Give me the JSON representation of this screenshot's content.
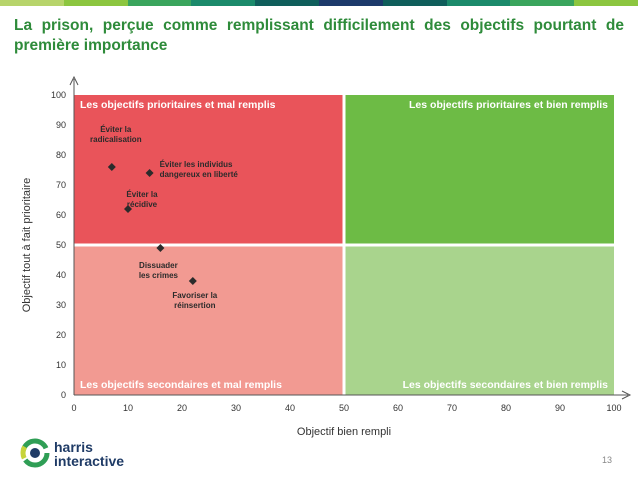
{
  "title": "La prison, perçue comme remplissant difficilement des objectifs pourtant de première importance",
  "page_number": "13",
  "logo": {
    "line1": "harris",
    "line2": "interactive"
  },
  "colors": {
    "title": "#2e8b3a",
    "top_bar": [
      "#b7d46b",
      "#8cc63f",
      "#3aa55d",
      "#1b8a6b",
      "#0f5e5b",
      "#1d3a6b",
      "#0f5e5b",
      "#1b8a6b",
      "#3aa55d",
      "#8cc63f"
    ],
    "q_top_left": "#e9545a",
    "q_bottom_left": "#f29a92",
    "q_top_right": "#6dbb45",
    "q_bottom_right": "#a9d48d"
  },
  "chart_data": {
    "type": "scatter",
    "xlabel": "Objectif bien rempli",
    "ylabel": "Objectif tout à fait prioritaire",
    "xlim": [
      0,
      100
    ],
    "ylim": [
      0,
      100
    ],
    "x_ticks": [
      "0",
      "10",
      "20",
      "30",
      "40",
      "50",
      "60",
      "70",
      "80",
      "90",
      "100"
    ],
    "y_ticks": [
      "0",
      "10",
      "20",
      "30",
      "40",
      "50",
      "60",
      "70",
      "80",
      "90",
      "100"
    ],
    "quadrant_split": {
      "x": 50,
      "y": 50
    },
    "quadrants": {
      "top_left": "Les objectifs prioritaires et mal remplis",
      "top_right": "Les objectifs prioritaires et bien remplis",
      "bottom_left": "Les objectifs secondaires et mal remplis",
      "bottom_right": "Les objectifs secondaires et bien remplis"
    },
    "points": [
      {
        "label": [
          "Éviter la",
          "radicalisation"
        ],
        "x": 7,
        "y": 76
      },
      {
        "label": [
          "Éviter les individus",
          "dangereux en liberté"
        ],
        "x": 14,
        "y": 74
      },
      {
        "label": [
          "Éviter la",
          "récidive"
        ],
        "x": 10,
        "y": 62
      },
      {
        "label": [
          "Dissuader",
          "les crimes"
        ],
        "x": 16,
        "y": 49
      },
      {
        "label": [
          "Favoriser la",
          "réinsertion"
        ],
        "x": 22,
        "y": 38
      }
    ]
  }
}
